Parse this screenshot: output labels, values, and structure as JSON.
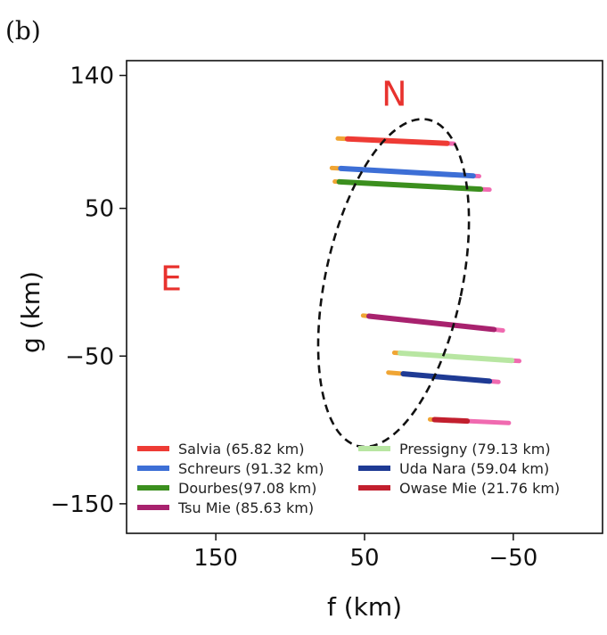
{
  "chart_data": {
    "type": "line",
    "panel_label": "(b)",
    "xlabel": "f (km)",
    "ylabel": "g (km)",
    "xlim": [
      210,
      -110
    ],
    "ylim": [
      -170,
      150
    ],
    "x_ticks": [
      {
        "value": 150,
        "label": "150"
      },
      {
        "value": 50,
        "label": "50"
      },
      {
        "value": -50,
        "label": "−50"
      }
    ],
    "y_ticks": [
      {
        "value": 140,
        "label": "140"
      },
      {
        "value": 50,
        "label": "50"
      },
      {
        "value": -50,
        "label": "−50"
      },
      {
        "value": -150,
        "label": "−150"
      }
    ],
    "grid": false,
    "legend_placement": "lower-center",
    "annotations": [
      {
        "text": "N",
        "x": 30,
        "y": 128
      },
      {
        "text": "E",
        "x": 180,
        "y": 3
      }
    ],
    "ellipse_fit": {
      "center": [
        30.5,
        -0.5
      ],
      "semi_axis_horizontal": 46,
      "semi_axis_vertical": 113,
      "rotation_deg": 12,
      "style": "dashed",
      "color": "#111111"
    },
    "series": [
      {
        "name": "Salvia (65.82 km)",
        "color": "#ee3b35",
        "x": [
          61.5,
          -5.5
        ],
        "y": [
          97,
          94
        ],
        "pre": [
          68,
          61.5
        ],
        "post": [
          -5.5,
          -10
        ]
      },
      {
        "name": "Schreurs (91.32 km)",
        "color": "#3d6fd6",
        "x": [
          66,
          -23
        ],
        "y": [
          77,
          72
        ],
        "pre": [
          72,
          66
        ],
        "post": [
          -23,
          -27
        ]
      },
      {
        "name": "Dourbes(97.08 km)",
        "color": "#3b8f1e",
        "x": [
          67,
          -28
        ],
        "y": [
          68,
          63
        ],
        "pre": [
          70,
          67
        ],
        "post": [
          -28,
          -34
        ]
      },
      {
        "name": "Tsu Mie (85.63 km)",
        "color": "#a8226e",
        "x": [
          47,
          -37
        ],
        "y": [
          -23,
          -32
        ],
        "pre": [
          51,
          47
        ],
        "post": [
          -37,
          -43
        ]
      },
      {
        "name": "Pressigny (79.13 km)",
        "color": "#b8e6a2",
        "x": [
          26,
          -49
        ],
        "y": [
          -48,
          -53
        ],
        "pre": [
          30,
          26
        ],
        "post": [
          -49,
          -54
        ]
      },
      {
        "name": "Uda Nara (59.04 km)",
        "color": "#1e3a94",
        "x": [
          24,
          -34
        ],
        "y": [
          -62,
          -67
        ],
        "pre": [
          34,
          24
        ],
        "post": [
          -34,
          -40
        ]
      },
      {
        "name": "Owase Mie (21.76 km)",
        "color": "#c21f2e",
        "x": [
          3,
          -19
        ],
        "y": [
          -93,
          -94
        ],
        "pre": [
          6,
          3
        ],
        "post": [
          -19,
          -47
        ]
      }
    ],
    "ingress_color": "#f0a534",
    "egress_color": "#f06ab0"
  }
}
